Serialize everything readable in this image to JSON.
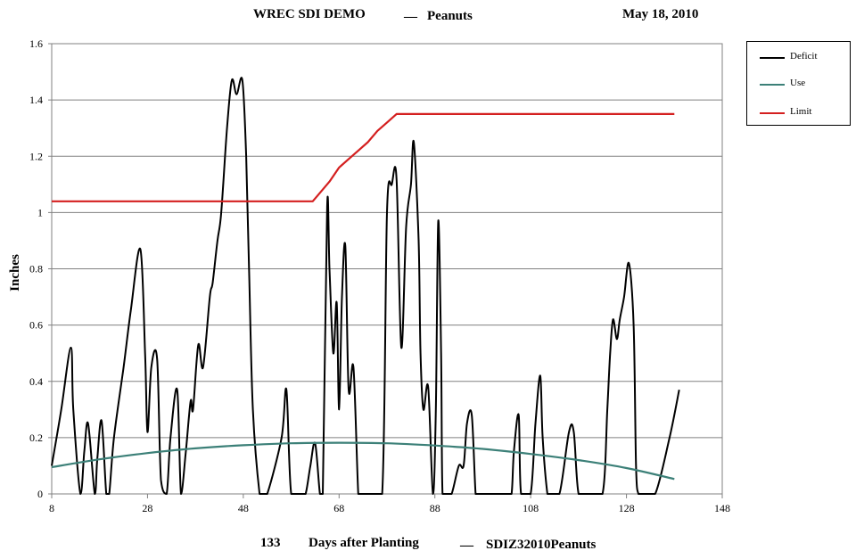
{
  "header": {
    "site": "WREC SDI DEMO",
    "separator": "__",
    "crop": "Peanuts",
    "date": "May 18, 2010"
  },
  "footer": {
    "days": "133",
    "xlabel": "Days after Planting",
    "separator": "__",
    "file": "SDIZ32010Peanuts"
  },
  "chart_data": {
    "type": "line",
    "ylabel": "Inches",
    "xlabel": "Days after Planting",
    "xlim": [
      8,
      148
    ],
    "ylim": [
      0,
      1.6
    ],
    "xticks": [
      "8",
      "28",
      "48",
      "68",
      "88",
      "108",
      "128",
      "148"
    ],
    "yticks": [
      "0",
      "0.2",
      "0.4",
      "0.6",
      "0.8",
      "1",
      "1.2",
      "1.4",
      "1.6"
    ],
    "grid": "horizontal",
    "legend_position": "right",
    "series": [
      {
        "name": "Deficit",
        "color": "#000000",
        "x": [
          8,
          10,
          12,
          12.5,
          14,
          14.8,
          15.6,
          17,
          17.5,
          18.4,
          19.4,
          20,
          21,
          23,
          24.5,
          26.5,
          27.5,
          28,
          28.8,
          30,
          30.8,
          32,
          32.8,
          34.2,
          35,
          36,
          37,
          37.5,
          38.6,
          39.6,
          41,
          41.6,
          42.6,
          43.4,
          44.6,
          45.6,
          46.6,
          47.8,
          48.6,
          49.2,
          50,
          51.4,
          52,
          53,
          56,
          57,
          58,
          60,
          61,
          62,
          63,
          64,
          64.6,
          65.5,
          66,
          66.8,
          67.5,
          68,
          68.6,
          69.3,
          70,
          71,
          72,
          72.5,
          73.5,
          74.5,
          77,
          78,
          79,
          80,
          81,
          82,
          83,
          83.6,
          84.6,
          85,
          85.6,
          86.6,
          87.6,
          88.2,
          88.7,
          89.3,
          89.6,
          90.5,
          91.5,
          93,
          94,
          94.7,
          95.7,
          96.5,
          97,
          98,
          99,
          100,
          103,
          104,
          104.5,
          105.5,
          106,
          108,
          109,
          110,
          110.5,
          111.5,
          112,
          114,
          116,
          117,
          118,
          120,
          123,
          124,
          124.6,
          125.2,
          126,
          126.6,
          127.5,
          128.5,
          129.5,
          130,
          130.5,
          131.5,
          134,
          137,
          139
        ],
        "values": [
          0.1,
          0.3,
          0.52,
          0.3,
          0,
          0.15,
          0.25,
          0,
          0.12,
          0.26,
          0,
          0,
          0.2,
          0.45,
          0.65,
          0.87,
          0.5,
          0.22,
          0.45,
          0.48,
          0.05,
          0,
          0.2,
          0.37,
          0,
          0.15,
          0.33,
          0.3,
          0.53,
          0.45,
          0.7,
          0.75,
          0.9,
          1.0,
          1.3,
          1.47,
          1.42,
          1.47,
          1.2,
          0.8,
          0.3,
          0,
          0,
          0,
          0.2,
          0.37,
          0,
          0,
          0,
          0.1,
          0.18,
          0,
          0,
          1.02,
          0.8,
          0.5,
          0.68,
          0.3,
          0.7,
          0.88,
          0.37,
          0.45,
          0,
          0,
          0,
          0,
          0,
          1.0,
          1.1,
          1.12,
          0.52,
          0.95,
          1.1,
          1.25,
          0.9,
          0.5,
          0.3,
          0.38,
          0,
          0.3,
          0.97,
          0.5,
          0,
          0,
          0,
          0.1,
          0.1,
          0.25,
          0.28,
          0,
          0,
          0,
          0,
          0,
          0,
          0,
          0.15,
          0.28,
          0,
          0,
          0.25,
          0.42,
          0.2,
          0,
          0,
          0,
          0.22,
          0.22,
          0,
          0,
          0,
          0.3,
          0.5,
          0.62,
          0.55,
          0.62,
          0.7,
          0.82,
          0.6,
          0.1,
          0,
          0,
          0,
          0.2,
          0.37
        ]
      },
      {
        "name": "Use",
        "color": "#3c8078",
        "x": [
          8,
          18,
          28,
          38,
          48,
          58,
          68,
          78,
          88,
          98,
          108,
          118,
          128,
          138
        ],
        "values": [
          0.095,
          0.123,
          0.145,
          0.162,
          0.173,
          0.18,
          0.182,
          0.18,
          0.172,
          0.16,
          0.142,
          0.12,
          0.092,
          0.053
        ]
      },
      {
        "name": "Limit",
        "color": "#d41f1f",
        "x": [
          8,
          62,
          62.5,
          64,
          66,
          68,
          70,
          72,
          74,
          76,
          78,
          80,
          138
        ],
        "values": [
          1.04,
          1.04,
          1.04,
          1.07,
          1.11,
          1.16,
          1.19,
          1.22,
          1.25,
          1.29,
          1.32,
          1.35,
          1.35
        ]
      }
    ]
  }
}
